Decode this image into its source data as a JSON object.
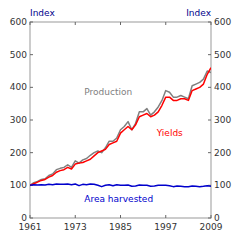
{
  "chart_data": {
    "type": "line",
    "y_label": "Index",
    "y2_label": "Index",
    "x": [
      1961,
      1962,
      1963,
      1964,
      1965,
      1966,
      1967,
      1968,
      1969,
      1970,
      1971,
      1972,
      1973,
      1974,
      1975,
      1976,
      1977,
      1978,
      1979,
      1980,
      1981,
      1982,
      1983,
      1984,
      1985,
      1986,
      1987,
      1988,
      1989,
      1990,
      1991,
      1992,
      1993,
      1994,
      1995,
      1996,
      1997,
      1998,
      1999,
      2000,
      2001,
      2002,
      2003,
      2004,
      2005,
      2006,
      2007,
      2008,
      2009
    ],
    "xlim": [
      1961,
      2009
    ],
    "xticks": [
      1961,
      1973,
      1985,
      1997,
      2009
    ],
    "ylim": [
      0,
      600
    ],
    "yticks": [
      0,
      100,
      200,
      300,
      400,
      500,
      600
    ],
    "y2lim": [
      0,
      600
    ],
    "y2ticks": [
      0,
      100,
      200,
      300,
      400,
      500,
      600
    ],
    "grid": false,
    "series": [
      {
        "name": "Production",
        "color": "#808080",
        "values": [
          100,
          108,
          112,
          118,
          120,
          130,
          135,
          148,
          152,
          155,
          163,
          155,
          175,
          168,
          178,
          182,
          192,
          200,
          205,
          200,
          215,
          235,
          235,
          245,
          270,
          280,
          295,
          270,
          290,
          325,
          325,
          335,
          315,
          325,
          340,
          360,
          390,
          385,
          370,
          370,
          375,
          370,
          365,
          405,
          410,
          415,
          425,
          450,
          445
        ]
      },
      {
        "name": "Yields",
        "color": "#ff0000",
        "values": [
          100,
          105,
          110,
          115,
          118,
          125,
          130,
          140,
          145,
          148,
          155,
          150,
          165,
          168,
          170,
          175,
          180,
          190,
          200,
          205,
          210,
          225,
          230,
          235,
          260,
          270,
          280,
          270,
          285,
          310,
          315,
          320,
          310,
          315,
          325,
          345,
          370,
          370,
          360,
          360,
          365,
          365,
          360,
          390,
          395,
          400,
          410,
          440,
          460
        ]
      },
      {
        "name": "Area harvested",
        "color": "#0000cc",
        "values": [
          100,
          102,
          101,
          102,
          101,
          103,
          102,
          104,
          103,
          103,
          104,
          102,
          104,
          99,
          103,
          102,
          104,
          103,
          100,
          96,
          100,
          102,
          99,
          102,
          100,
          100,
          101,
          97,
          98,
          101,
          100,
          100,
          97,
          98,
          100,
          100,
          100,
          99,
          96,
          98,
          97,
          96,
          96,
          98,
          97,
          96,
          97,
          99,
          97
        ]
      }
    ]
  }
}
